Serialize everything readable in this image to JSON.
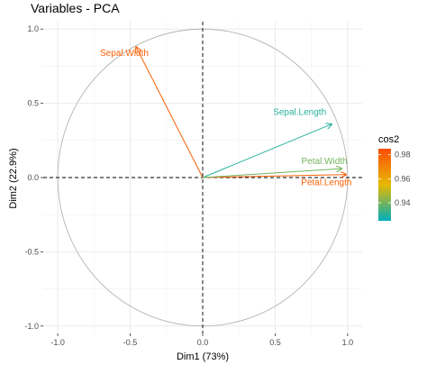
{
  "chart_data": {
    "type": "scatter",
    "subtype": "pca-variable-correlation-circle",
    "title": "Variables - PCA",
    "xlabel": "Dim1 (73%)",
    "ylabel": "Dim2 (22.9%)",
    "xlim": [
      -1.1,
      1.1
    ],
    "ylim": [
      -1.05,
      1.05
    ],
    "x_ticks": [
      -1.0,
      -0.5,
      0.0,
      0.5,
      1.0
    ],
    "x_tick_labels": [
      "-1.0",
      "-0.5",
      "0.0",
      "0.5",
      "1.0"
    ],
    "y_ticks": [
      -1.0,
      -0.5,
      0.0,
      0.5,
      1.0
    ],
    "y_tick_labels": [
      "-1.0",
      "-0.5",
      "0.0",
      "0.5",
      "1.0"
    ],
    "grid": true,
    "unit_circle": true,
    "variables": [
      {
        "name": "Sepal.Length",
        "x": 0.89,
        "y": 0.36,
        "cos2": 0.93
      },
      {
        "name": "Sepal.Width",
        "x": -0.46,
        "y": 0.88,
        "cos2": 0.98
      },
      {
        "name": "Petal.Length",
        "x": 0.99,
        "y": 0.02,
        "cos2": 0.98
      },
      {
        "name": "Petal.Width",
        "x": 0.96,
        "y": 0.06,
        "cos2": 0.94
      }
    ],
    "legend": {
      "title": "cos2",
      "position": "right",
      "range": [
        0.925,
        0.985
      ],
      "ticks": [
        0.94,
        0.96,
        0.98
      ],
      "tick_labels": [
        "0.94",
        "0.96",
        "0.98"
      ],
      "colors": {
        "low": "#00AFBB",
        "mid": "#E7B800",
        "high": "#FC4E07"
      }
    }
  }
}
